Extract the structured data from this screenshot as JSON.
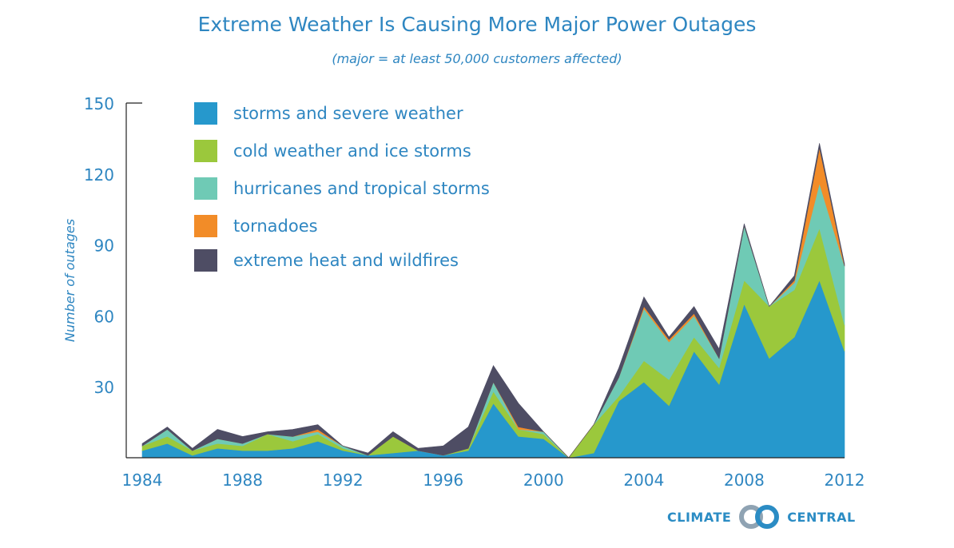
{
  "chart_data": {
    "type": "area",
    "stacked": true,
    "title": "Extreme Weather Is Causing More Major Power Outages",
    "subtitle": "(major = at least 50,000 customers affected)",
    "ylabel": "Number of outages",
    "xlabel": "",
    "xlim": [
      1984,
      2012
    ],
    "ylim": [
      0,
      150
    ],
    "x_ticks": [
      "1984",
      "1988",
      "1992",
      "1996",
      "2000",
      "2004",
      "2008",
      "2012"
    ],
    "y_ticks": [
      "30",
      "60",
      "90",
      "120",
      "150"
    ],
    "legend_position": "top-left",
    "x": [
      1984,
      1985,
      1986,
      1987,
      1988,
      1989,
      1990,
      1991,
      1992,
      1993,
      1994,
      1995,
      1996,
      1997,
      1998,
      1999,
      2000,
      2001,
      2002,
      2003,
      2004,
      2005,
      2006,
      2007,
      2008,
      2009,
      2010,
      2011,
      2012
    ],
    "series": [
      {
        "name": "storms and severe weather",
        "color": "#2698cc",
        "values": [
          3,
          6,
          1,
          4,
          3,
          3,
          4,
          7,
          3,
          1,
          2,
          3,
          1,
          3,
          23,
          9,
          8,
          0,
          2,
          24,
          32,
          22,
          45,
          31,
          65,
          42,
          51,
          75,
          45
        ]
      },
      {
        "name": "cold weather and ice storms",
        "color": "#9bc83c",
        "values": [
          2,
          3,
          2,
          2,
          2,
          7,
          3,
          3,
          1,
          0,
          7,
          0,
          0,
          1,
          5,
          3,
          2,
          0,
          12,
          2,
          9,
          11,
          6,
          7,
          10,
          22,
          20,
          22,
          11
        ]
      },
      {
        "name": "hurricanes and tropical storms",
        "color": "#6fcab5",
        "values": [
          0,
          3,
          0,
          2,
          1,
          0,
          2,
          1,
          1,
          0,
          0,
          0,
          0,
          0,
          4,
          0,
          1,
          0,
          0,
          8,
          22,
          16,
          9,
          4,
          23,
          0,
          3,
          19,
          25
        ]
      },
      {
        "name": "tornadoes",
        "color": "#f28c28",
        "values": [
          0,
          0,
          0,
          0,
          0,
          0,
          0,
          1,
          0,
          0,
          0,
          0,
          0,
          0,
          0,
          1,
          0,
          0,
          0,
          0,
          1,
          1,
          1,
          0,
          0,
          0,
          1,
          15,
          0
        ]
      },
      {
        "name": "extreme heat and wildfires",
        "color": "#4e4d64",
        "values": [
          1,
          1,
          1,
          4,
          3,
          1,
          3,
          2,
          0,
          1,
          2,
          1,
          4,
          9,
          7,
          10,
          0,
          0,
          0,
          4,
          4,
          1,
          3,
          4,
          1,
          0,
          2,
          2,
          1
        ]
      }
    ]
  },
  "brand": {
    "left": "CLIMATE",
    "right": "CENTRAL",
    "logo_icon": "interlocking-rings-icon"
  }
}
